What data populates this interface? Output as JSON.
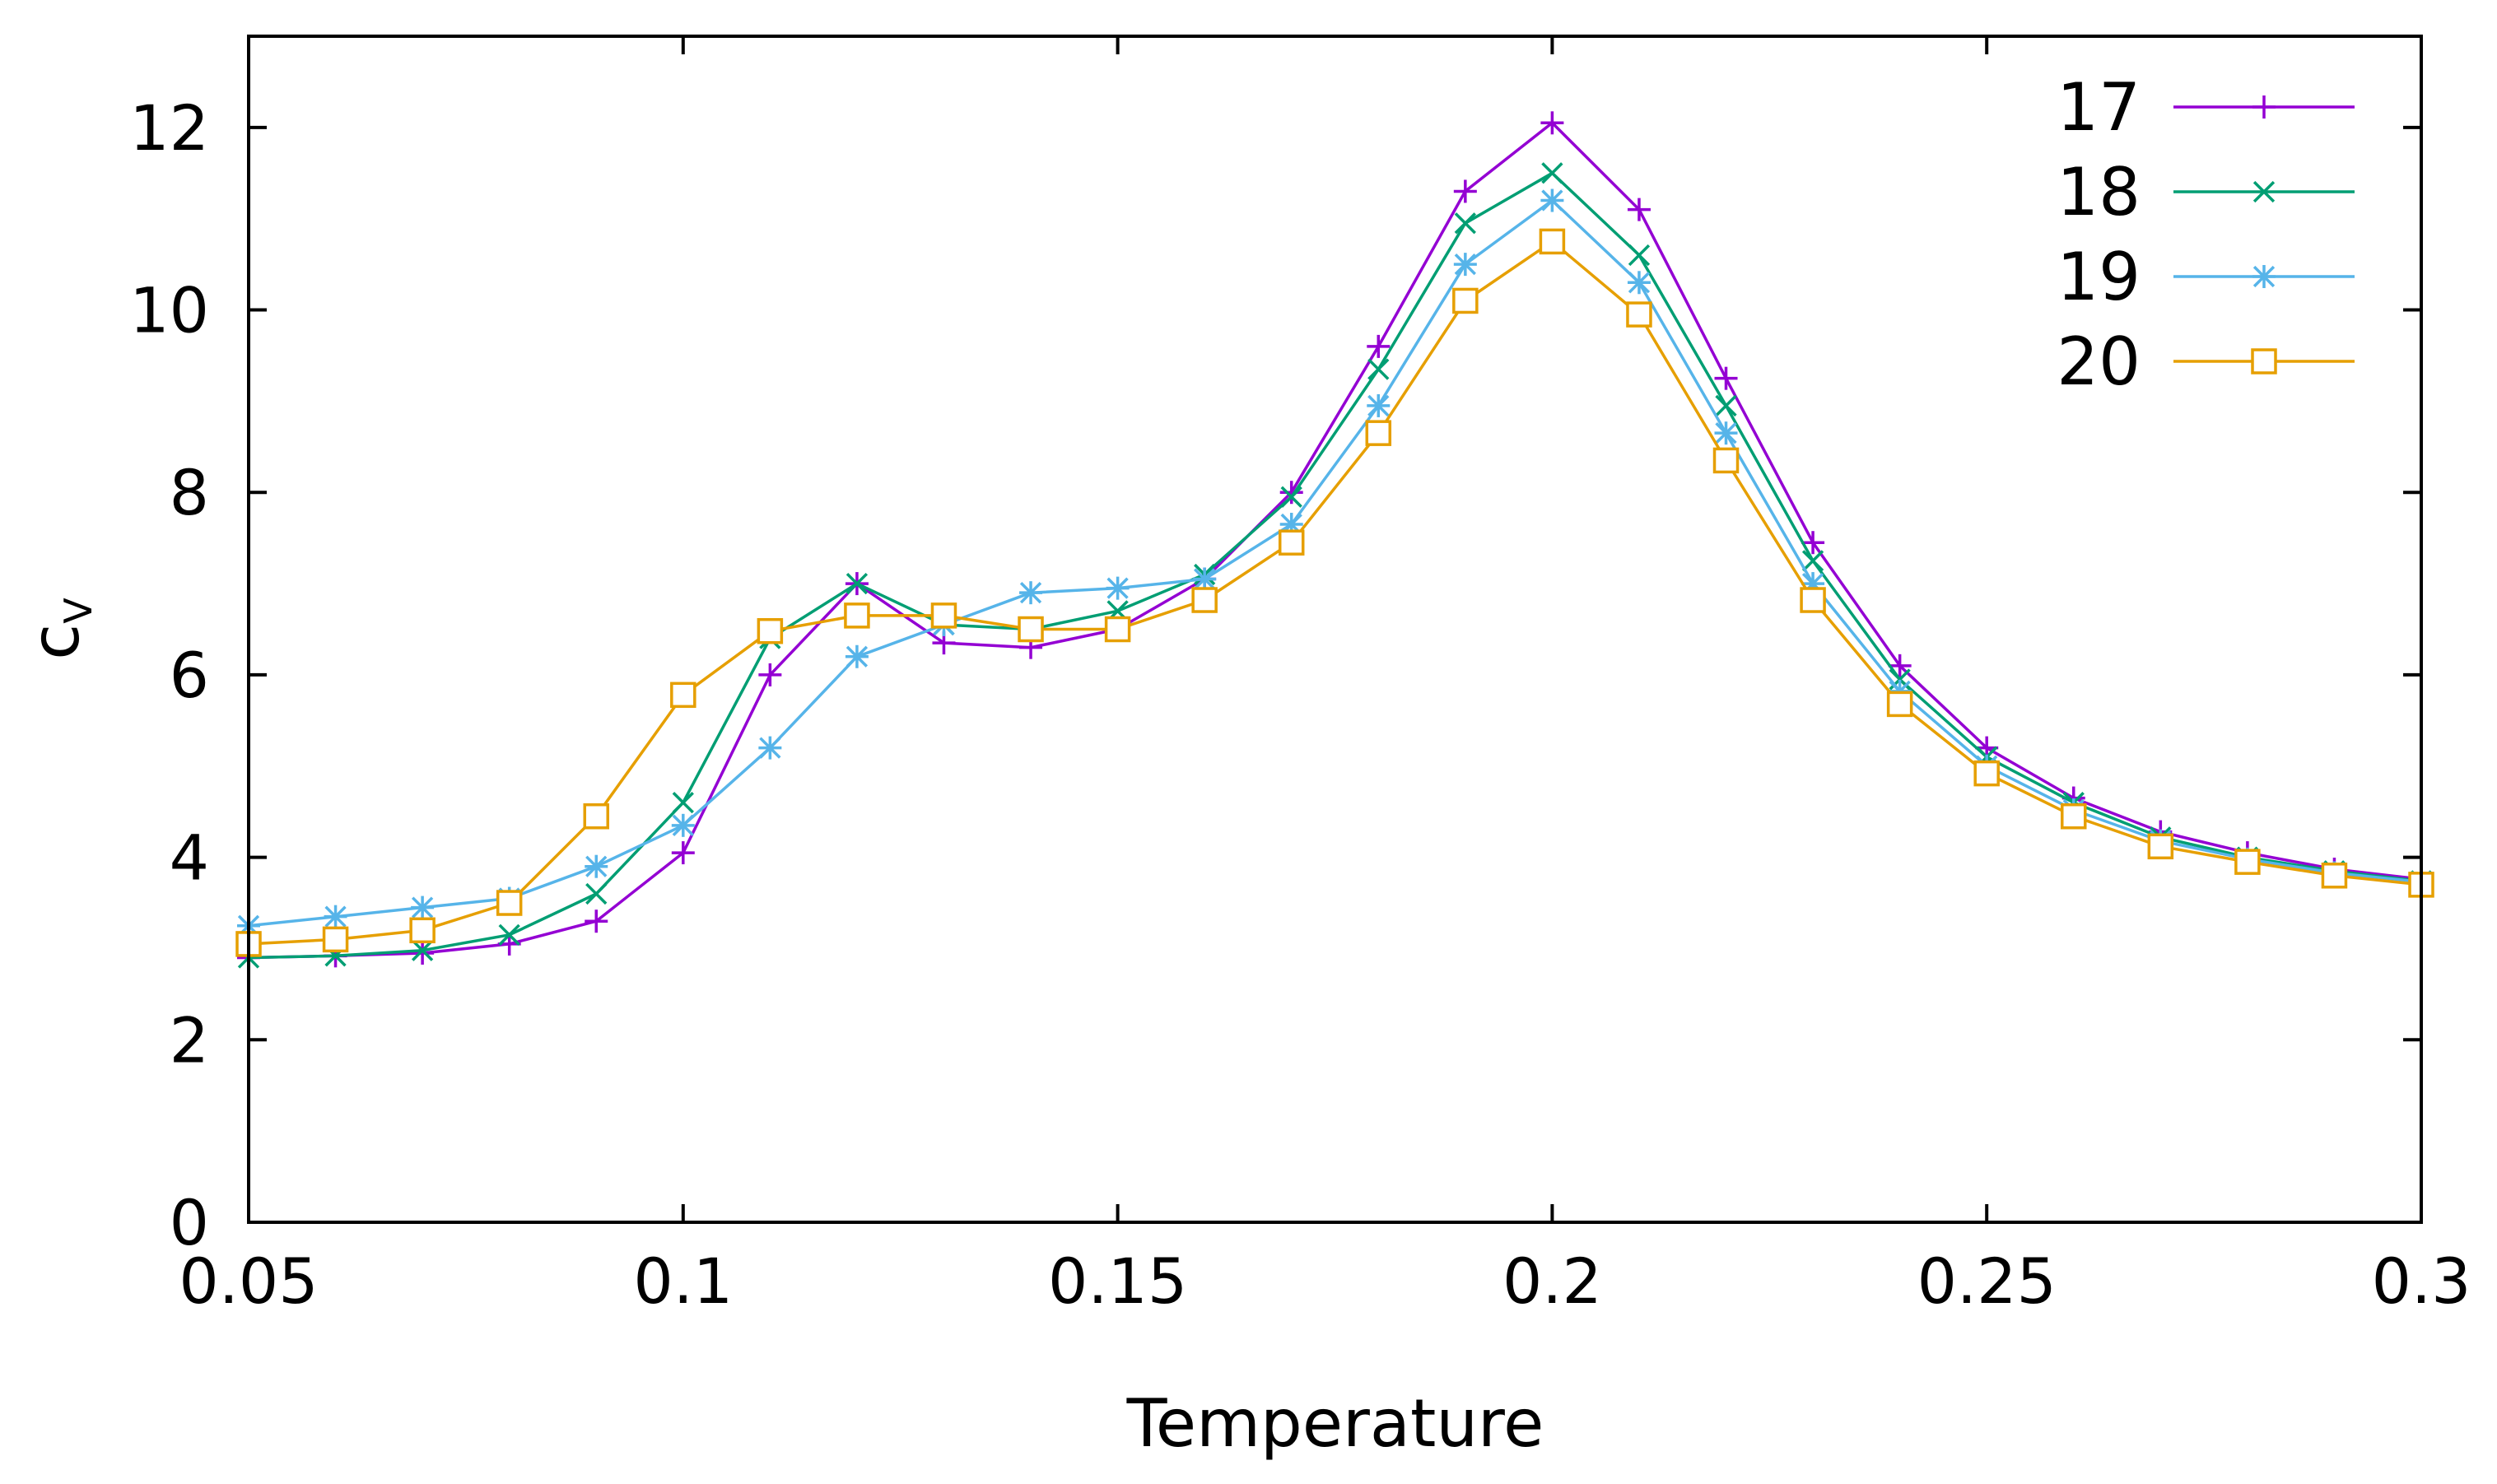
{
  "chart_data": {
    "type": "line",
    "title": "",
    "xlabel": "Temperature",
    "ylabel": "c",
    "ylabel_subscript": "V",
    "xlim": [
      0.05,
      0.3
    ],
    "ylim": [
      0,
      13
    ],
    "xticks": [
      0.05,
      0.1,
      0.15,
      0.2,
      0.25,
      0.3
    ],
    "xtick_labels": [
      "0.05",
      "0.1",
      "0.15",
      "0.2",
      "0.25",
      "0.3"
    ],
    "yticks": [
      0,
      2,
      4,
      6,
      8,
      10,
      12
    ],
    "ytick_labels": [
      "0",
      "2",
      "4",
      "6",
      "8",
      "10",
      "12"
    ],
    "grid": false,
    "legend_position": "top-right",
    "x": [
      0.05,
      0.06,
      0.07,
      0.08,
      0.09,
      0.1,
      0.11,
      0.12,
      0.13,
      0.14,
      0.15,
      0.16,
      0.17,
      0.18,
      0.19,
      0.2,
      0.21,
      0.22,
      0.23,
      0.24,
      0.25,
      0.26,
      0.27,
      0.28,
      0.29,
      0.3
    ],
    "series": [
      {
        "name": "17",
        "color": "#9400d3",
        "marker": "plus",
        "values": [
          2.9,
          2.92,
          2.95,
          3.05,
          3.3,
          4.05,
          6.0,
          7.0,
          6.35,
          6.3,
          6.5,
          7.05,
          8.0,
          9.6,
          11.3,
          12.05,
          11.1,
          9.25,
          7.45,
          6.1,
          5.2,
          4.65,
          4.28,
          4.05,
          3.87,
          3.76
        ]
      },
      {
        "name": "18",
        "color": "#009e73",
        "marker": "cross",
        "values": [
          2.9,
          2.92,
          2.98,
          3.15,
          3.6,
          4.6,
          6.4,
          7.0,
          6.55,
          6.5,
          6.7,
          7.1,
          7.95,
          9.35,
          10.95,
          11.5,
          10.6,
          8.95,
          7.25,
          5.95,
          5.1,
          4.6,
          4.22,
          4.0,
          3.85,
          3.74
        ]
      },
      {
        "name": "19",
        "color": "#56b4e9",
        "marker": "star",
        "values": [
          3.25,
          3.35,
          3.45,
          3.55,
          3.9,
          4.35,
          5.2,
          6.2,
          6.55,
          6.9,
          6.95,
          7.05,
          7.65,
          8.95,
          10.5,
          11.2,
          10.3,
          8.65,
          7.0,
          5.82,
          5.0,
          4.52,
          4.18,
          3.98,
          3.83,
          3.73
        ]
      },
      {
        "name": "20",
        "color": "#e69f00",
        "marker": "square",
        "values": [
          3.05,
          3.1,
          3.2,
          3.5,
          4.45,
          5.78,
          6.48,
          6.65,
          6.65,
          6.5,
          6.5,
          6.82,
          7.45,
          8.65,
          10.1,
          10.75,
          9.95,
          8.35,
          6.82,
          5.68,
          4.92,
          4.45,
          4.12,
          3.95,
          3.8,
          3.7
        ]
      }
    ]
  }
}
